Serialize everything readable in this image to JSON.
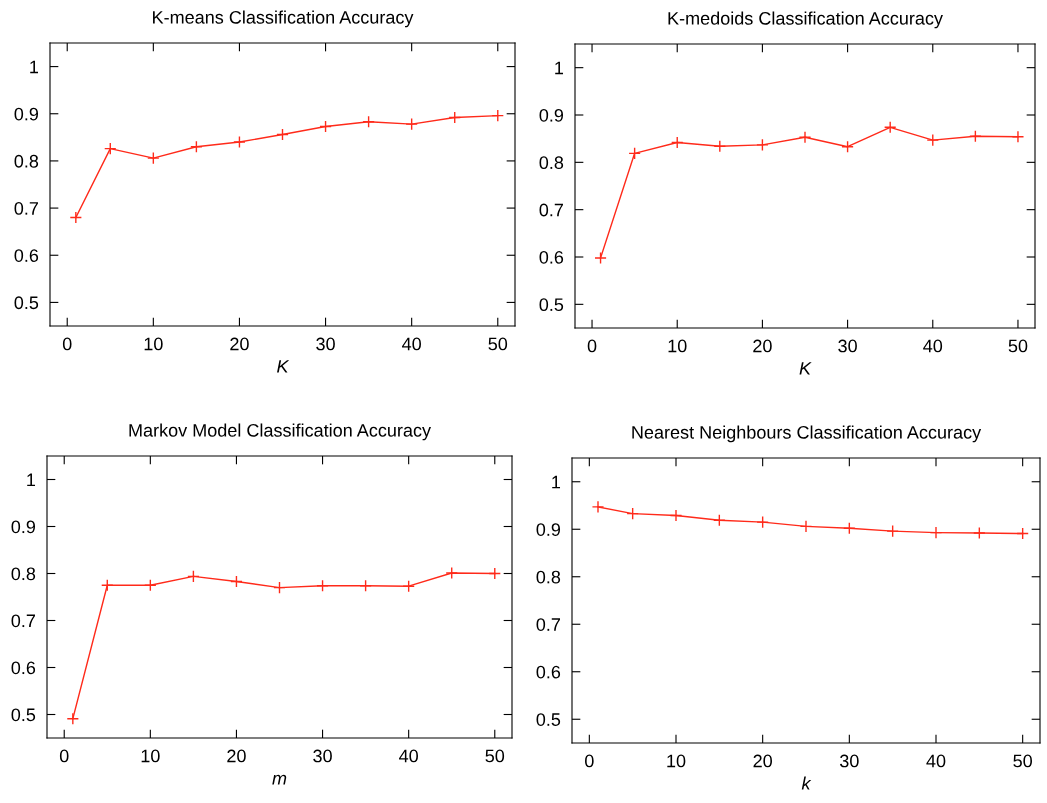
{
  "chart_data": [
    {
      "type": "line",
      "title": "K-means Classification Accuracy",
      "xlabel": "K",
      "x": [
        1,
        5,
        10,
        15,
        20,
        25,
        30,
        35,
        40,
        45,
        50
      ],
      "series": [
        {
          "color": "#ff2a1a",
          "values": [
            0.68,
            0.826,
            0.806,
            0.83,
            0.84,
            0.856,
            0.873,
            0.883,
            0.878,
            0.892,
            0.896
          ]
        }
      ],
      "xlim": [
        -2,
        52
      ],
      "xticks": [
        0,
        10,
        20,
        30,
        40,
        50
      ],
      "ylim": [
        0.45,
        1.05
      ],
      "yticks": [
        0.5,
        0.6,
        0.7,
        0.8,
        0.9,
        1
      ],
      "marker": "cross",
      "line_style": "solid",
      "grid": false,
      "legend": false
    },
    {
      "type": "line",
      "title": "K-medoids Classification Accuracy",
      "xlabel": "K",
      "x": [
        1,
        5,
        10,
        15,
        20,
        25,
        30,
        35,
        40,
        45,
        50
      ],
      "series": [
        {
          "color": "#ff2a1a",
          "values": [
            0.598,
            0.819,
            0.842,
            0.834,
            0.837,
            0.853,
            0.833,
            0.874,
            0.847,
            0.855,
            0.854
          ]
        }
      ],
      "xlim": [
        -2,
        52
      ],
      "xticks": [
        0,
        10,
        20,
        30,
        40,
        50
      ],
      "ylim": [
        0.45,
        1.05
      ],
      "yticks": [
        0.5,
        0.6,
        0.7,
        0.8,
        0.9,
        1
      ],
      "marker": "cross",
      "line_style": "solid",
      "grid": false,
      "legend": false
    },
    {
      "type": "line",
      "title": "Markov Model Classification Accuracy",
      "xlabel": "m",
      "x": [
        1,
        5,
        10,
        15,
        20,
        25,
        30,
        35,
        40,
        45,
        50
      ],
      "series": [
        {
          "color": "#ff2a1a",
          "values": [
            0.491,
            0.775,
            0.775,
            0.794,
            0.783,
            0.77,
            0.774,
            0.774,
            0.773,
            0.801,
            0.8
          ]
        }
      ],
      "xlim": [
        -2,
        52
      ],
      "xticks": [
        0,
        10,
        20,
        30,
        40,
        50
      ],
      "ylim": [
        0.45,
        1.05
      ],
      "yticks": [
        0.5,
        0.6,
        0.7,
        0.8,
        0.9,
        1
      ],
      "marker": "cross",
      "line_style": "solid",
      "grid": false,
      "legend": false
    },
    {
      "type": "line",
      "title": "Nearest Neighbours Classification Accuracy",
      "xlabel": "k",
      "x": [
        1,
        5,
        10,
        15,
        20,
        25,
        30,
        35,
        40,
        45,
        50
      ],
      "series": [
        {
          "color": "#ff2a1a",
          "values": [
            0.947,
            0.933,
            0.929,
            0.919,
            0.915,
            0.906,
            0.902,
            0.896,
            0.893,
            0.892,
            0.891
          ]
        }
      ],
      "xlim": [
        -2,
        52
      ],
      "xticks": [
        0,
        10,
        20,
        30,
        40,
        50
      ],
      "ylim": [
        0.45,
        1.05
      ],
      "yticks": [
        0.5,
        0.6,
        0.7,
        0.8,
        0.9,
        1
      ],
      "marker": "cross",
      "line_style": "solid",
      "grid": false,
      "legend": false
    }
  ]
}
